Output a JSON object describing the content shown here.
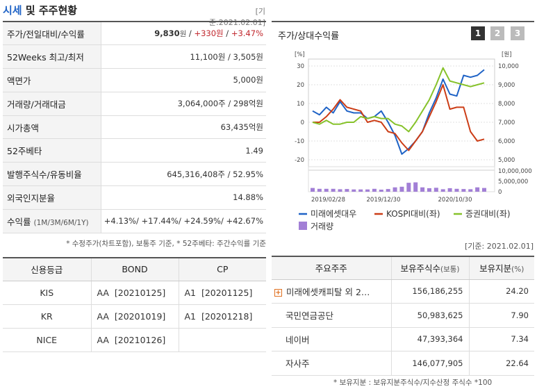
{
  "header": {
    "title_accent": "시세",
    "title_rest": " 및 주주현황",
    "base_date": "[기준:2021.02.01]"
  },
  "market": {
    "rows": [
      {
        "label": "주가/전일대비/수익률",
        "price": "9,830",
        "won": "원",
        "sep": " / ",
        "change": "+330원",
        "sep2": " / ",
        "rate": "+3.47%"
      },
      {
        "label": "52Weeks 최고/최저",
        "value": "11,100원 / 3,505원"
      },
      {
        "label": "액면가",
        "value": "5,000원"
      },
      {
        "label": "거래량/거래대금",
        "value": "3,064,000주 / 298억원"
      },
      {
        "label": "시가총액",
        "value": "63,435억원"
      },
      {
        "label": "52주베타",
        "value": "1.49"
      },
      {
        "label": "발행주식수/유동비율",
        "value": "645,316,408주 / 52.95%"
      },
      {
        "label": "외국인지분율",
        "value": "14.88%"
      }
    ],
    "returns": {
      "label": "수익률",
      "label_sub": "(1M/3M/6M/1Y)",
      "value": "+4.13%/ +17.44%/ +24.59%/ +42.67%"
    },
    "note": "* 수정주가(차트포함), 보통주 기준, * 52주베타: 주간수익률 기준"
  },
  "credit": {
    "headers": [
      "신용등급",
      "BOND",
      "CP"
    ],
    "rows": [
      [
        "KIS",
        "AA  [20210125]",
        "A1  [20201125]"
      ],
      [
        "KR",
        "AA  [20201019]",
        "A1  [20201218]"
      ],
      [
        "NICE",
        "AA  [20210126]",
        ""
      ]
    ]
  },
  "chart": {
    "title": "주가/상대수익률",
    "tabs": [
      "1",
      "2",
      "3"
    ],
    "base_date": "[기준: 2021.02.01]"
  },
  "chart_data": {
    "type": "line",
    "y_left_unit": "[%]",
    "y_right_unit": "[원]",
    "y_left_ticks": [
      "30",
      "20",
      "10",
      "0",
      "-10",
      "-20"
    ],
    "y_right_ticks": [
      "10,000",
      "9,000",
      "8,000",
      "7,000",
      "6,000",
      "5,000"
    ],
    "volume_ticks": [
      "10,000,000",
      "5,000,000",
      "0"
    ],
    "x_ticks": [
      "2019/02/28",
      "2019/12/30",
      "2020/10/30"
    ],
    "ylim_left": [
      -20,
      30
    ],
    "ylim_right": [
      5000,
      10000
    ],
    "series": [
      {
        "name": "미래에셋대우",
        "color": "#1f63c6",
        "values": [
          6,
          4,
          8,
          5,
          11,
          6,
          5,
          5,
          2,
          3,
          6,
          0,
          -7,
          -17,
          -14,
          -10,
          -5,
          5,
          13,
          23,
          15,
          14,
          25,
          24,
          25,
          28
        ]
      },
      {
        "name": "KOSPI대비(좌)",
        "color": "#cc3d16",
        "values": [
          0,
          0,
          3,
          7,
          12,
          8,
          7,
          6,
          0,
          1,
          0,
          -5,
          -6,
          -11,
          -15,
          -10,
          -5,
          3,
          11,
          20,
          7,
          8,
          8,
          -5,
          -10,
          -9
        ]
      },
      {
        "name": "증권대비(좌)",
        "color": "#86c22a",
        "values": [
          0,
          -1,
          1,
          -1,
          -1,
          0,
          0,
          3,
          2,
          3,
          2,
          2,
          -1,
          -2,
          -5,
          0,
          6,
          12,
          20,
          29,
          22,
          21,
          20,
          19,
          20,
          21
        ]
      }
    ],
    "volume": {
      "name": "거래량",
      "color": "#a27fd6",
      "values": [
        1.8,
        1.4,
        1.4,
        1.4,
        1.2,
        1.3,
        1.1,
        1.1,
        1.1,
        1.4,
        1.0,
        1.3,
        2.1,
        2.4,
        4.3,
        4.5,
        2.1,
        1.7,
        1.9,
        1.2,
        1.7,
        1.4,
        1.3,
        1.2,
        2.1,
        1.8
      ]
    }
  },
  "holders": {
    "headers": [
      "주요주주",
      "보유주식수",
      "(보통)",
      "보유지분",
      "(%)"
    ],
    "rows": [
      {
        "name": "미래에셋캐피탈 외 2…",
        "shares": "156,186,255",
        "pct": "24.20",
        "expand": "+"
      },
      {
        "name": "국민연금공단",
        "shares": "50,983,625",
        "pct": "7.90"
      },
      {
        "name": "네이버",
        "shares": "47,393,364",
        "pct": "7.34"
      },
      {
        "name": "자사주",
        "shares": "146,077,905",
        "pct": "22.64"
      }
    ],
    "note": "* 보유지분 : 보유지분주식수/지수산정 주식수 *100"
  }
}
